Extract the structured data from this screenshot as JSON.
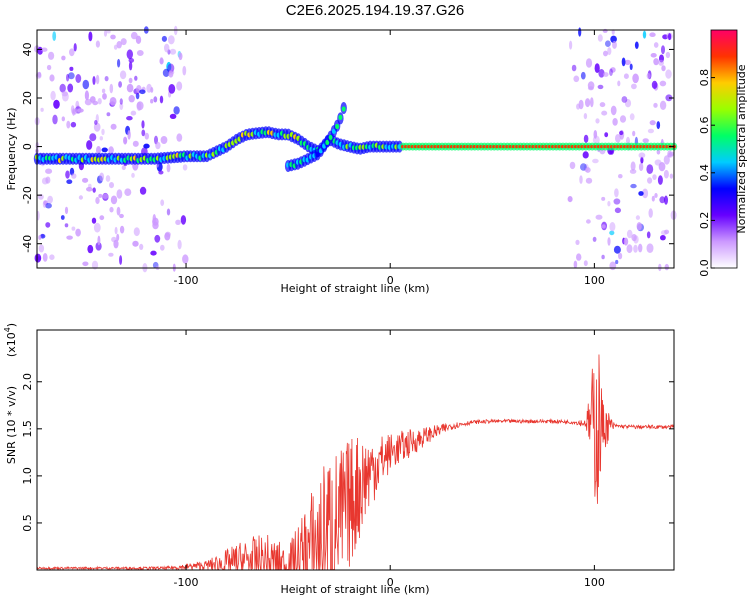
{
  "title": "C2E6.2025.194.19.37.G26",
  "chart_data": [
    {
      "type": "heatmap",
      "xlabel": "Height of straight line (km)",
      "ylabel": "Frequency (Hz)",
      "xlim": [
        -173,
        139
      ],
      "ylim": [
        -50,
        48
      ],
      "x_ticks": [
        -100,
        0,
        100
      ],
      "x_tick_labels": [
        "-100",
        "0",
        "100"
      ],
      "y_ticks": [
        40,
        20,
        0,
        -20,
        -40
      ],
      "y_tick_labels": [
        "40",
        "20",
        "0",
        "-20",
        "-40"
      ],
      "colorbar": {
        "label": "Normalized spectral amplitude",
        "range": [
          0,
          1
        ],
        "ticks": [
          0.0,
          0.2,
          0.4,
          0.6,
          0.8
        ],
        "tick_labels": [
          "0.0",
          "0.2",
          "0.4",
          "0.6",
          "0.8"
        ],
        "colors": [
          "#ffffff",
          "#cc99ff",
          "#6600ff",
          "#0000ff",
          "#00ccff",
          "#00ff66",
          "#99ff00",
          "#ffcc00",
          "#ff3300",
          "#ff0066"
        ]
      },
      "ridge": {
        "x": [
          -173,
          -150,
          -130,
          -115,
          -100,
          -90,
          -85,
          -80,
          -75,
          -70,
          -60,
          -55,
          -50,
          -45,
          -40,
          -35,
          -30,
          -25,
          -20,
          -15,
          -10,
          -5,
          0,
          10,
          20,
          40,
          60,
          80,
          100,
          120,
          139
        ],
        "y": [
          -5,
          -5,
          -5,
          -5,
          -4,
          -4,
          -2,
          0,
          3,
          5,
          6,
          5,
          5,
          3,
          0,
          -2,
          3,
          1,
          0,
          -1,
          0,
          0,
          0,
          0,
          0,
          0,
          0,
          0,
          0,
          0,
          0
        ]
      },
      "branch": {
        "x": [
          -50,
          -45,
          -40,
          -35,
          -30,
          -25,
          -22
        ],
        "y": [
          -8,
          -7,
          -5,
          -3,
          3,
          10,
          18
        ]
      },
      "strong_band_from_x": 5,
      "noise_regions": [
        [
          -173,
          -100
        ],
        [
          88,
          139
        ]
      ],
      "grid": false
    },
    {
      "type": "line",
      "xlabel": "Height of straight line (km)",
      "ylabel": "SNR (10 * v/v)",
      "y_scale_label": "(x10",
      "y_scale_exponent": "4",
      "xlim": [
        -173,
        139
      ],
      "ylim": [
        0,
        2.55
      ],
      "x_ticks": [
        -100,
        0,
        100
      ],
      "x_tick_labels": [
        "-100",
        "0",
        "100"
      ],
      "y_ticks": [
        0.5,
        1.0,
        1.5,
        2.0
      ],
      "y_tick_labels": [
        "0.5",
        "1.0",
        "1.5",
        "2.0"
      ],
      "color": "#e8372f",
      "grid": false,
      "envelope": {
        "x": [
          -173,
          -110,
          -90,
          -80,
          -70,
          -60,
          -50,
          -45,
          -40,
          -35,
          -30,
          -25,
          -20,
          -15,
          -10,
          -5,
          0,
          10,
          20,
          30,
          40,
          50,
          60,
          70,
          80,
          90,
          96,
          100,
          102,
          104,
          110,
          120,
          130,
          139
        ],
        "base": [
          0.02,
          0.02,
          0.05,
          0.07,
          0.1,
          0.08,
          0.05,
          0.1,
          0.2,
          0.3,
          0.4,
          0.5,
          0.7,
          0.9,
          1.05,
          1.15,
          1.25,
          1.35,
          1.45,
          1.53,
          1.57,
          1.58,
          1.58,
          1.58,
          1.58,
          1.57,
          1.56,
          1.55,
          1.54,
          1.53,
          1.53,
          1.52,
          1.52,
          1.52
        ],
        "amp": [
          0.01,
          0.015,
          0.05,
          0.15,
          0.25,
          0.3,
          0.2,
          0.4,
          0.6,
          0.7,
          0.9,
          0.8,
          0.7,
          0.6,
          0.4,
          0.3,
          0.2,
          0.15,
          0.08,
          0.04,
          0.02,
          0.02,
          0.02,
          0.02,
          0.02,
          0.02,
          0.05,
          0.8,
          1.0,
          0.3,
          0.02,
          0.02,
          0.02,
          0.02
        ]
      }
    }
  ]
}
